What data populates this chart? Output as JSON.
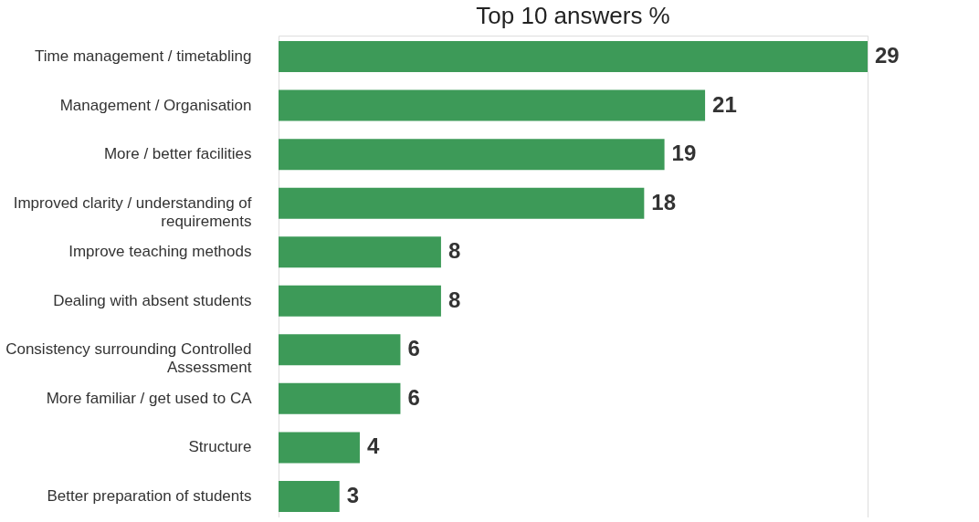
{
  "chart_data": {
    "type": "bar",
    "orientation": "horizontal",
    "title": "Top 10 answers %",
    "categories": [
      "Time management / timetabling",
      "Management / Organisation",
      "More / better facilities",
      "Improved clarity / understanding of requirements",
      "Improve teaching methods",
      "Dealing with absent students",
      "Consistency surrounding Controlled Assessment",
      "More familiar / get used to CA",
      "Structure",
      "Better preparation of students"
    ],
    "values": [
      29,
      21,
      19,
      18,
      8,
      8,
      6,
      6,
      4,
      3
    ],
    "color": "#3d9a58",
    "data_labels": true
  }
}
